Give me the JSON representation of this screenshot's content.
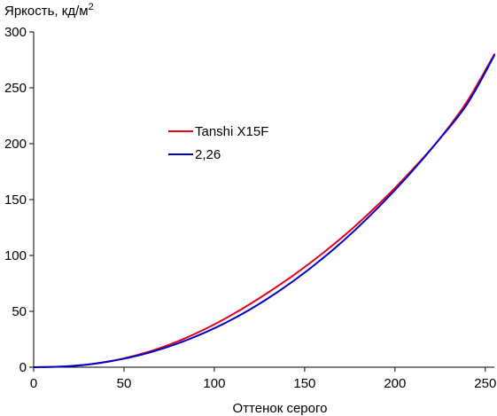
{
  "chart_data": {
    "type": "line",
    "title": "",
    "ylabel": "Яркость, кд/м",
    "ylabel_superscript": "2",
    "xlabel": "Оттенок серого",
    "xlim": [
      0,
      255
    ],
    "ylim": [
      0,
      300
    ],
    "xticks": [
      0,
      50,
      100,
      150,
      200,
      250
    ],
    "yticks": [
      0,
      50,
      100,
      150,
      200,
      250,
      300
    ],
    "grid": false,
    "legend_position": "center-left",
    "series": [
      {
        "name": "Tanshi X15F",
        "color": "#e8001c",
        "x": [
          0,
          16,
          32,
          48,
          64,
          80,
          96,
          112,
          128,
          144,
          160,
          176,
          192,
          208,
          224,
          240,
          255
        ],
        "y": [
          0.0,
          0.7,
          2.8,
          7.2,
          14.0,
          23.3,
          35.0,
          49.0,
          65.0,
          82.5,
          102.0,
          123.5,
          147.5,
          174.0,
          203.0,
          238.0,
          280.0
        ]
      },
      {
        "name": "2,26",
        "color": "#0000cc",
        "x": [
          0,
          16,
          32,
          48,
          64,
          80,
          96,
          112,
          128,
          144,
          160,
          176,
          192,
          208,
          224,
          240,
          255
        ],
        "y": [
          0.0,
          0.6,
          2.8,
          7.0,
          13.1,
          21.4,
          31.9,
          44.6,
          59.8,
          77.4,
          97.4,
          119.9,
          145.0,
          172.6,
          202.8,
          235.6,
          279.0
        ]
      }
    ]
  }
}
